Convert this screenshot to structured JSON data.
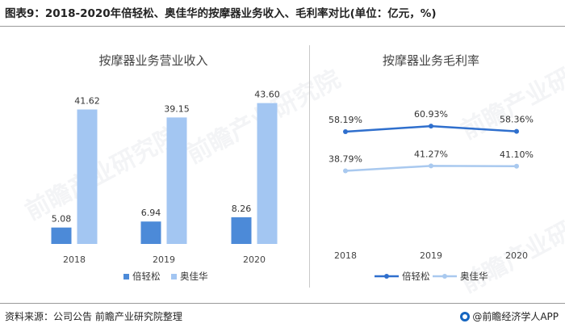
{
  "figure_title": "图表9：2018-2020年倍轻松、奥佳华的按摩器业务收入、毛利率对比(单位：亿元，%)",
  "source": "资料来源：公司公告 前瞻产业研究院整理",
  "brand": "@前瞻经济学人APP",
  "watermark": "前瞻产业研究院",
  "colors": {
    "series_1": "#4c8ad8",
    "series_2": "#a3c6f2",
    "line_1": "#2f6fcd",
    "line_2": "#a9c9ef"
  },
  "chart_data": [
    {
      "type": "bar",
      "title": "按摩器业务营业收入",
      "categories": [
        "2018",
        "2019",
        "2020"
      ],
      "series": [
        {
          "name": "倍轻松",
          "values": [
            5.08,
            6.94,
            8.26
          ],
          "labels": [
            "5.08",
            "6.94",
            "8.26"
          ]
        },
        {
          "name": "奥佳华",
          "values": [
            41.62,
            39.15,
            43.6
          ],
          "labels": [
            "41.62",
            "39.15",
            "43.60"
          ]
        }
      ],
      "ylim": [
        0,
        46
      ],
      "grid": false,
      "legend": "bottom"
    },
    {
      "type": "line",
      "title": "按摩器业务毛利率",
      "categories": [
        "2018",
        "2019",
        "2020"
      ],
      "series": [
        {
          "name": "倍轻松",
          "values": [
            58.19,
            60.93,
            58.36
          ],
          "labels": [
            "58.19%",
            "60.93%",
            "58.36%"
          ]
        },
        {
          "name": "奥佳华",
          "values": [
            38.79,
            41.27,
            41.1
          ],
          "labels": [
            "38.79%",
            "41.27%",
            "41.10%"
          ]
        }
      ],
      "ylim": [
        0,
        70
      ],
      "grid": false,
      "legend": "bottom"
    }
  ]
}
